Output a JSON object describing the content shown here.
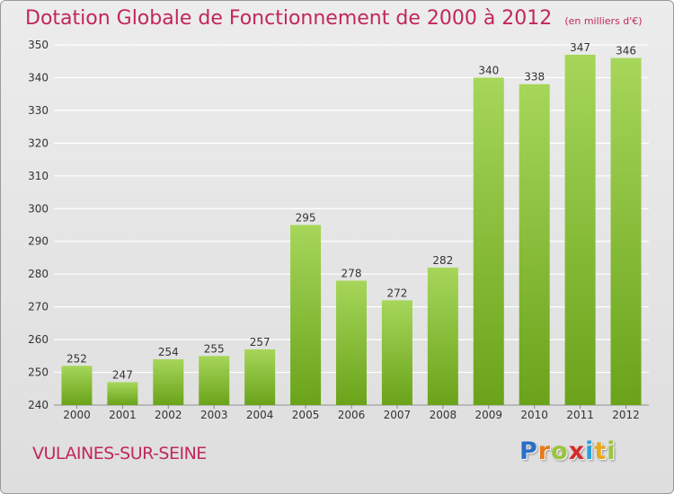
{
  "title": "Dotation Globale de Fonctionnement de 2000 à 2012",
  "unit_note": "(en milliers d'€)",
  "commune": "VULAINES-SUR-SEINE",
  "brand": {
    "letters": [
      "P",
      "r",
      "o",
      "x",
      "i",
      "t",
      "i"
    ],
    "colors": [
      "#2a6fc4",
      "#e87a1c",
      "#9ac43c",
      "#d62b2b",
      "#2a9ed8",
      "#e8a81c",
      "#9ac43c"
    ]
  },
  "colors": {
    "bar_top": "#a6d65a",
    "bar_bottom": "#6aa31a",
    "title": "#c2275b",
    "grid": "#ffffff",
    "axis_text": "#333333"
  },
  "chart_data": {
    "type": "bar",
    "title": "Dotation Globale de Fonctionnement de 2000 à 2012",
    "ylabel": "(en milliers d'€)",
    "xlabel": "",
    "categories": [
      "2000",
      "2001",
      "2002",
      "2003",
      "2004",
      "2005",
      "2006",
      "2007",
      "2008",
      "2009",
      "2010",
      "2011",
      "2012"
    ],
    "values": [
      252,
      247,
      254,
      255,
      257,
      295,
      278,
      272,
      282,
      340,
      338,
      347,
      346
    ],
    "ylim": [
      240,
      350
    ],
    "yticks": [
      240,
      250,
      260,
      270,
      280,
      290,
      300,
      310,
      320,
      330,
      340,
      350
    ],
    "grid": true,
    "data_labels": true
  }
}
